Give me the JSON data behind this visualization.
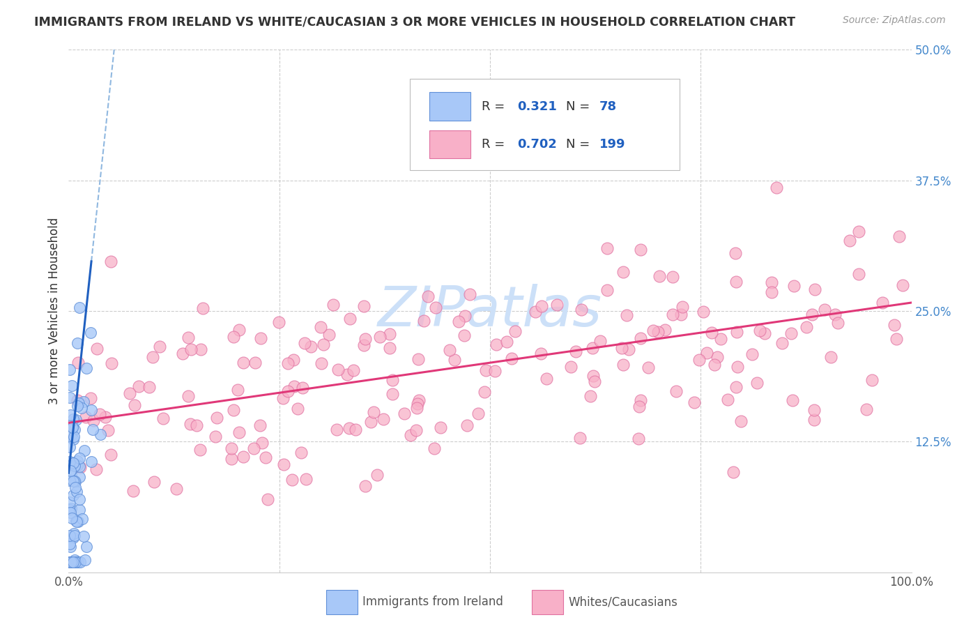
{
  "title": "IMMIGRANTS FROM IRELAND VS WHITE/CAUCASIAN 3 OR MORE VEHICLES IN HOUSEHOLD CORRELATION CHART",
  "source": "Source: ZipAtlas.com",
  "ylabel": "3 or more Vehicles in Household",
  "xlim": [
    0,
    1.0
  ],
  "ylim": [
    0,
    0.5
  ],
  "ytick_positions": [
    0.125,
    0.25,
    0.375,
    0.5
  ],
  "ytick_labels": [
    "12.5%",
    "25.0%",
    "37.5%",
    "50.0%"
  ],
  "blue_R": 0.321,
  "blue_N": 78,
  "pink_R": 0.702,
  "pink_N": 199,
  "blue_dot_color": "#a8c8f8",
  "blue_dot_edge": "#6090d8",
  "pink_dot_color": "#f8b0c8",
  "pink_dot_edge": "#e070a0",
  "blue_line_color": "#2060c0",
  "pink_line_color": "#e03878",
  "blue_dash_color": "#90b8e0",
  "watermark_color": "#cce0f8",
  "legend_label_blue": "Immigrants from Ireland",
  "legend_label_pink": "Whites/Caucasians",
  "blue_R_color": "#2060c0",
  "pink_R_color": "#e03878",
  "legend_text_color": "#333333",
  "legend_RN_color": "#2060c0",
  "title_color": "#333333",
  "source_color": "#999999",
  "axis_tick_color": "#555555",
  "yaxis_tick_color": "#4488cc",
  "grid_color": "#cccccc"
}
